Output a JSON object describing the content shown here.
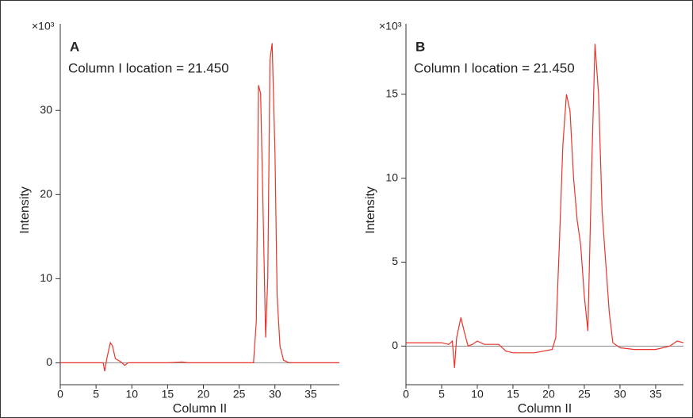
{
  "chart_data": [
    {
      "type": "line",
      "panel_label": "A",
      "annotation": "Column I location = 21.450",
      "multiplier": "×10³",
      "x_label": "Column II",
      "y_label": "Intensity",
      "xlim": [
        0,
        39
      ],
      "ylim": [
        -2.6,
        40.3
      ],
      "xticks": [
        0,
        5,
        10,
        15,
        20,
        25,
        30,
        35
      ],
      "yticks": [
        0,
        10,
        20,
        30
      ],
      "zero_line": true,
      "series": [
        {
          "color": "#e8342a",
          "x": [
            0,
            6,
            6.2,
            6.5,
            7,
            7.3,
            7.7,
            8.5,
            9,
            9.5,
            15,
            17,
            18,
            27,
            27.4,
            27.7,
            28,
            28.3,
            28.7,
            29,
            29.3,
            29.6,
            30,
            30.3,
            30.7,
            31.2,
            32,
            39
          ],
          "values": [
            0,
            0,
            -1,
            0.5,
            2.4,
            2,
            0.5,
            0.1,
            -0.3,
            0,
            0,
            0.1,
            0,
            0,
            5,
            33,
            32,
            20,
            3,
            10,
            36,
            38,
            25,
            8,
            2,
            0.3,
            0,
            0
          ]
        }
      ]
    },
    {
      "type": "line",
      "panel_label": "B",
      "annotation": "Column I location = 21.450",
      "multiplier": "×10³",
      "x_label": "Column II",
      "y_label": "Intensity",
      "xlim": [
        0,
        38.9
      ],
      "ylim": [
        -2.3,
        19.2
      ],
      "xticks": [
        0,
        5,
        10,
        15,
        20,
        25,
        30,
        35
      ],
      "yticks": [
        0,
        5,
        10,
        15
      ],
      "zero_line": true,
      "series": [
        {
          "color": "#e8342a",
          "x": [
            0,
            5,
            6,
            6.5,
            6.8,
            7.1,
            7.7,
            8.2,
            8.7,
            9.3,
            10,
            11,
            13,
            14,
            15,
            18,
            20.5,
            21,
            21.5,
            22,
            22.5,
            23,
            23.5,
            24,
            24.5,
            25,
            25.5,
            26,
            26.5,
            27,
            27.5,
            28,
            28.5,
            29,
            30,
            32,
            35,
            37,
            38,
            38.9
          ],
          "values": [
            0.2,
            0.2,
            0.1,
            0.3,
            -1.3,
            0.5,
            1.7,
            0.8,
            0,
            0.1,
            0.3,
            0.1,
            0.1,
            -0.3,
            -0.4,
            -0.4,
            -0.2,
            0.5,
            6,
            12,
            15,
            14,
            10,
            7.5,
            6,
            3,
            0.9,
            10,
            18,
            15,
            8,
            5,
            2,
            0.2,
            -0.1,
            -0.2,
            -0.2,
            0,
            0.3,
            0.2
          ]
        }
      ]
    }
  ]
}
